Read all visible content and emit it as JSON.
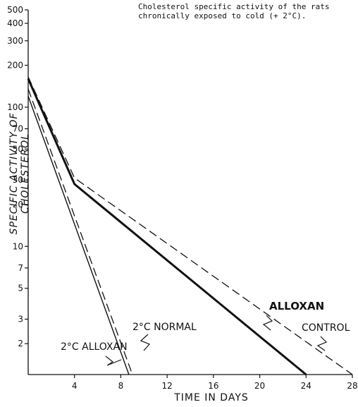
{
  "chart_data": {
    "type": "line",
    "title": "Cholesterol specific activity of the rats\nchronically exposed to cold (+ 2°C).",
    "xlabel": "TIME IN DAYS",
    "ylabel": "SPECIFIC ACTIVITY OF CHOLESTEROL",
    "xlim": [
      0,
      28
    ],
    "ylim": [
      1.2,
      500
    ],
    "yscale": "log",
    "x_ticks": [
      4,
      8,
      12,
      16,
      20,
      24,
      28
    ],
    "y_ticks": [
      2,
      3,
      5,
      7,
      10,
      20,
      30,
      50,
      70,
      100,
      200,
      300,
      400,
      500
    ],
    "grid": false,
    "series": [
      {
        "name": "CONTROL",
        "style": "dashed",
        "x": [
          0,
          4,
          28
        ],
        "y": [
          165,
          31,
          1.2
        ]
      },
      {
        "name": "ALLOXAN",
        "style": "solid-bold",
        "x": [
          0,
          4,
          24
        ],
        "y": [
          160,
          28,
          1.2
        ]
      },
      {
        "name": "2°C NORMAL",
        "style": "dashed",
        "x": [
          0,
          9
        ],
        "y": [
          135,
          1.2
        ]
      },
      {
        "name": "2°C ALLOXAN",
        "style": "solid",
        "x": [
          0,
          8.7
        ],
        "y": [
          120,
          1.2
        ]
      }
    ]
  }
}
